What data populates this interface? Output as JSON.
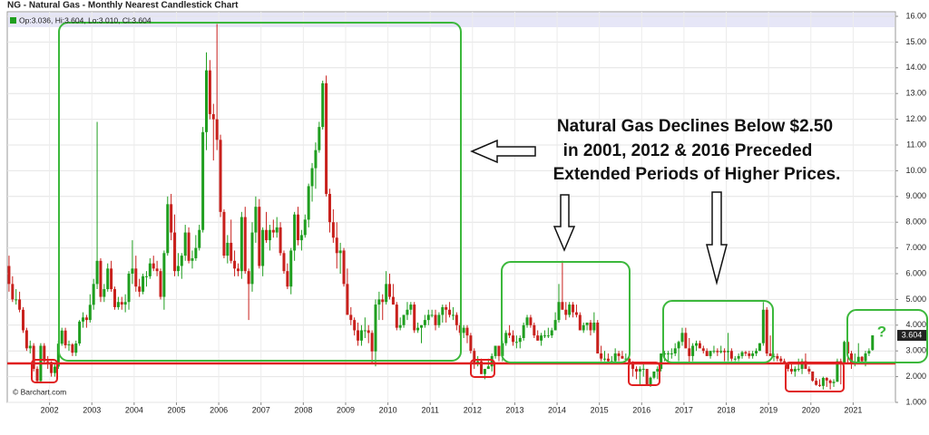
{
  "chart_data": {
    "type": "candlestick",
    "title": "NG - Natural Gas - Monthly Nearest Candlestick Chart",
    "legend": "Op:3.036, Hi:3.604, Lo:3.010, Cl:3.604",
    "source": "© Barchart.com",
    "annotations": [
      "Natural Gas Declines Below $2.50",
      "in 2001, 2012 & 2016 Preceded",
      "Extended Periods of Higher Prices.",
      "?"
    ],
    "up_color": "#1f9e1f",
    "down_color": "#c8201c",
    "ylim": [
      1,
      16
    ],
    "yticks": [
      {
        "value": 16,
        "label": "16.00"
      },
      {
        "value": 15,
        "label": "15.00"
      },
      {
        "value": 14,
        "label": "14.00"
      },
      {
        "value": 13,
        "label": "13.00"
      },
      {
        "value": 12,
        "label": "12.00"
      },
      {
        "value": 11,
        "label": "11.00"
      },
      {
        "value": 10,
        "label": "10.00"
      },
      {
        "value": 9,
        "label": "9.000"
      },
      {
        "value": 8,
        "label": "8.000"
      },
      {
        "value": 7,
        "label": "7.000"
      },
      {
        "value": 6,
        "label": "6.000"
      },
      {
        "value": 5,
        "label": "5.000"
      },
      {
        "value": 4,
        "label": "4.000"
      },
      {
        "value": 3,
        "label": "3.000"
      },
      {
        "value": 2,
        "label": "2.000"
      },
      {
        "value": 1,
        "label": "1.000"
      }
    ],
    "grid": true,
    "categories": [
      null,
      null,
      null,
      null,
      null,
      null,
      null,
      null,
      null,
      null,
      null,
      null,
      "2002",
      null,
      null,
      null,
      null,
      null,
      null,
      null,
      null,
      null,
      null,
      null,
      "2003",
      null,
      null,
      null,
      null,
      null,
      null,
      null,
      null,
      null,
      null,
      null,
      "2004",
      null,
      null,
      null,
      null,
      null,
      null,
      null,
      null,
      null,
      null,
      null,
      "2005",
      null,
      null,
      null,
      null,
      null,
      null,
      null,
      null,
      null,
      null,
      null,
      "2006",
      null,
      null,
      null,
      null,
      null,
      null,
      null,
      null,
      null,
      null,
      null,
      "2007",
      null,
      null,
      null,
      null,
      null,
      null,
      null,
      null,
      null,
      null,
      null,
      "2008",
      null,
      null,
      null,
      null,
      null,
      null,
      null,
      null,
      null,
      null,
      null,
      "2009",
      null,
      null,
      null,
      null,
      null,
      null,
      null,
      null,
      null,
      null,
      null,
      "2010",
      null,
      null,
      null,
      null,
      null,
      null,
      null,
      null,
      null,
      null,
      null,
      "2011",
      null,
      null,
      null,
      null,
      null,
      null,
      null,
      null,
      null,
      null,
      null,
      "2012",
      null,
      null,
      null,
      null,
      null,
      null,
      null,
      null,
      null,
      null,
      null,
      "2013",
      null,
      null,
      null,
      null,
      null,
      null,
      null,
      null,
      null,
      null,
      null,
      "2014",
      null,
      null,
      null,
      null,
      null,
      null,
      null,
      null,
      null,
      null,
      null,
      "2015",
      null,
      null,
      null,
      null,
      null,
      null,
      null,
      null,
      null,
      null,
      null,
      "2016",
      null,
      null,
      null,
      null,
      null,
      null,
      null,
      null,
      null,
      null,
      null,
      "2017",
      null,
      null,
      null,
      null,
      null,
      null,
      null,
      null,
      null,
      null,
      null,
      "2018",
      null,
      null,
      null,
      null,
      null,
      null,
      null,
      null,
      null,
      null,
      null,
      "2019",
      null,
      null,
      null,
      null,
      null,
      null,
      null,
      null,
      null,
      null,
      null,
      "2020",
      null,
      null,
      null,
      null,
      null,
      null,
      null,
      null,
      null,
      null,
      null,
      "2021",
      null,
      null,
      null,
      null,
      null
    ],
    "open": [
      6.3,
      5.6,
      5.0,
      5.0,
      4.6,
      3.8,
      3.1,
      3.2,
      2.3,
      1.83,
      3.2,
      2.6,
      2.57,
      2.14,
      2.39,
      3.28,
      3.79,
      3.22,
      3.25,
      2.93,
      3.29,
      4.14,
      4.3,
      4.2,
      4.79,
      5.6,
      6.5,
      5.1,
      5.4,
      6.2,
      5.4,
      4.7,
      4.9,
      4.8,
      4.9,
      6.0,
      6.2,
      5.5,
      5.3,
      5.9,
      5.9,
      6.4,
      6.2,
      6.1,
      5.1,
      6.8,
      8.7,
      7.6,
      6.1,
      6.3,
      6.7,
      7.6,
      6.5,
      6.6,
      7.0,
      7.7,
      11.5,
      13.9,
      12.2,
      12.0,
      11.2,
      8.4,
      6.7,
      7.2,
      6.5,
      6.2,
      6.1,
      8.2,
      6.1,
      5.6,
      7.6,
      8.6,
      6.3,
      7.7,
      7.3,
      7.7,
      7.6,
      7.8,
      6.8,
      6.1,
      5.5,
      6.9,
      8.3,
      7.3,
      7.5,
      8.1,
      9.4,
      10.1,
      10.8,
      11.7,
      13.4,
      9.1,
      8.0,
      7.4,
      6.8,
      6.9,
      5.6,
      4.4,
      4.2,
      3.8,
      3.4,
      3.8,
      3.8,
      3.7,
      2.98,
      4.8,
      5.0,
      4.9,
      5.6,
      5.1,
      4.8,
      3.9,
      4.0,
      4.4,
      4.6,
      4.8,
      3.8,
      3.9,
      4.0,
      4.2,
      4.4,
      4.4,
      4.0,
      4.4,
      4.7,
      4.6,
      4.4,
      4.4,
      4.0,
      3.7,
      3.9,
      3.6,
      3.0,
      2.5,
      2.6,
      2.1,
      2.3,
      2.4,
      2.8,
      3.2,
      2.8,
      3.3,
      3.7,
      3.6,
      3.35,
      3.35,
      3.5,
      4.0,
      4.3,
      4.0,
      3.6,
      3.4,
      3.6,
      3.6,
      3.6,
      3.8,
      4.2,
      4.9,
      4.6,
      4.4,
      4.8,
      4.5,
      4.4,
      3.8,
      4.0,
      4.1,
      3.8,
      4.1,
      2.9,
      2.7,
      2.7,
      2.6,
      2.6,
      2.9,
      2.8,
      2.7,
      2.7,
      2.5,
      2.3,
      2.2,
      2.3,
      2.3,
      1.7,
      1.96,
      2.2,
      2.3,
      2.9,
      2.9,
      2.9,
      2.9,
      3.1,
      3.35,
      3.7,
      3.1,
      2.8,
      3.2,
      3.3,
      3.1,
      3.0,
      2.8,
      3.0,
      3.0,
      2.95,
      3.0,
      2.95,
      3.0,
      2.7,
      2.7,
      2.8,
      2.95,
      2.9,
      2.8,
      2.9,
      3.0,
      3.3,
      4.6,
      2.9,
      2.8,
      2.8,
      2.7,
      2.6,
      2.5,
      2.3,
      2.2,
      2.3,
      2.3,
      2.6,
      2.3,
      2.2,
      1.84,
      1.68,
      1.64,
      1.95,
      1.85,
      1.75,
      1.8,
      2.6,
      2.5,
      3.35,
      2.9,
      2.5,
      2.56,
      2.77,
      2.6,
      2.9,
      3.036
    ],
    "high": [
      6.7,
      5.9,
      5.4,
      5.3,
      4.7,
      3.9,
      3.4,
      3.3,
      2.4,
      3.3,
      3.3,
      2.8,
      2.6,
      2.5,
      3.4,
      3.9,
      3.9,
      3.4,
      3.3,
      3.4,
      4.2,
      4.5,
      4.4,
      5.2,
      5.8,
      11.9,
      6.6,
      5.6,
      6.4,
      6.5,
      5.5,
      5.1,
      5.1,
      5.2,
      6.1,
      7.3,
      6.7,
      5.8,
      6.0,
      6.1,
      6.6,
      6.7,
      6.5,
      6.2,
      6.9,
      9.0,
      9.1,
      8.3,
      6.8,
      6.8,
      7.9,
      7.8,
      6.9,
      7.5,
      7.9,
      11.7,
      14.6,
      14.3,
      12.6,
      15.7,
      11.4,
      8.5,
      7.5,
      8.1,
      6.9,
      6.4,
      8.4,
      8.6,
      6.2,
      8.0,
      9.0,
      8.9,
      7.8,
      8.4,
      7.9,
      8.1,
      8.2,
      8.0,
      6.9,
      6.4,
      7.0,
      8.4,
      8.6,
      7.7,
      8.3,
      9.5,
      10.3,
      11.1,
      11.9,
      13.5,
      13.7,
      9.3,
      8.5,
      8.0,
      7.2,
      7.0,
      6.2,
      4.7,
      4.3,
      4.1,
      4.0,
      4.3,
      4.0,
      3.8,
      5.0,
      5.3,
      5.2,
      6.1,
      6.0,
      5.6,
      4.9,
      4.3,
      4.4,
      4.9,
      4.9,
      4.9,
      4.1,
      4.0,
      4.4,
      4.6,
      4.6,
      4.6,
      4.5,
      4.8,
      4.8,
      4.9,
      4.7,
      4.5,
      4.1,
      4.0,
      4.0,
      3.7,
      3.1,
      2.8,
      2.7,
      2.3,
      2.7,
      2.9,
      3.2,
      3.2,
      3.4,
      3.8,
      4.0,
      3.8,
      3.6,
      3.6,
      4.1,
      4.4,
      4.4,
      4.1,
      3.8,
      3.7,
      3.8,
      3.9,
      3.9,
      4.5,
      5.6,
      6.5,
      4.9,
      4.9,
      4.9,
      4.8,
      4.5,
      4.1,
      4.1,
      4.2,
      4.5,
      4.2,
      3.2,
      3.0,
      2.9,
      2.8,
      3.1,
      3.0,
      3.0,
      2.9,
      2.8,
      2.6,
      2.4,
      2.4,
      2.5,
      2.3,
      2.0,
      2.2,
      2.4,
      2.9,
      3.0,
      3.0,
      3.1,
      3.3,
      3.4,
      3.9,
      3.9,
      3.5,
      3.3,
      3.4,
      3.4,
      3.2,
      3.1,
      3.0,
      3.2,
      3.1,
      3.2,
      3.1,
      3.7,
      3.1,
      2.8,
      2.9,
      3.0,
      3.0,
      3.0,
      3.0,
      3.1,
      3.3,
      4.9,
      4.7,
      3.6,
      2.9,
      2.9,
      2.8,
      2.7,
      2.5,
      2.5,
      2.4,
      2.7,
      2.7,
      2.9,
      2.4,
      2.2,
      1.95,
      1.9,
      2.0,
      1.98,
      1.9,
      1.9,
      2.7,
      2.7,
      3.4,
      3.4,
      3.0,
      2.9,
      3.3,
      2.8,
      3.0,
      3.1,
      3.604
    ],
    "low": [
      5.3,
      4.9,
      4.8,
      4.5,
      3.7,
      3.0,
      2.9,
      2.2,
      1.8,
      1.8,
      2.5,
      2.3,
      2.0,
      2.0,
      2.3,
      3.2,
      3.1,
      3.0,
      2.8,
      2.8,
      3.2,
      3.9,
      3.9,
      4.1,
      4.6,
      5.4,
      4.9,
      4.9,
      5.3,
      5.3,
      4.6,
      4.6,
      4.6,
      4.5,
      4.6,
      5.6,
      5.3,
      5.1,
      5.2,
      5.5,
      5.8,
      6.1,
      5.9,
      5.0,
      4.6,
      6.7,
      7.3,
      5.9,
      5.9,
      5.8,
      6.5,
      6.4,
      6.2,
      6.5,
      6.9,
      7.6,
      10.8,
      12.0,
      10.4,
      10.8,
      8.2,
      6.6,
      6.4,
      6.4,
      5.9,
      5.9,
      5.8,
      6.0,
      4.2,
      5.3,
      7.2,
      6.2,
      5.9,
      7.2,
      6.9,
      7.4,
      7.4,
      6.7,
      6.0,
      5.4,
      5.2,
      6.5,
      7.1,
      6.9,
      7.4,
      7.8,
      8.8,
      9.3,
      10.7,
      11.6,
      9.0,
      7.6,
      7.2,
      6.2,
      6.0,
      5.5,
      4.4,
      4.0,
      3.6,
      3.2,
      3.2,
      3.5,
      3.3,
      2.5,
      2.4,
      4.2,
      4.2,
      4.8,
      5.0,
      4.8,
      3.8,
      3.8,
      3.9,
      4.2,
      4.4,
      3.7,
      3.7,
      3.3,
      3.9,
      4.0,
      4.3,
      3.8,
      3.9,
      4.1,
      4.1,
      4.3,
      4.2,
      3.8,
      3.6,
      3.5,
      3.3,
      2.9,
      2.3,
      2.4,
      2.1,
      1.9,
      2.3,
      2.2,
      2.7,
      2.6,
      2.6,
      3.2,
      3.5,
      3.2,
      3.1,
      3.1,
      3.4,
      3.9,
      3.9,
      3.5,
      3.4,
      3.2,
      3.5,
      3.5,
      3.5,
      3.8,
      4.1,
      4.6,
      4.2,
      4.3,
      4.3,
      4.3,
      3.8,
      3.7,
      3.8,
      3.6,
      3.7,
      2.9,
      2.6,
      2.6,
      2.5,
      2.5,
      2.5,
      2.6,
      2.7,
      2.6,
      2.5,
      2.0,
      1.9,
      1.7,
      2.0,
      1.7,
      1.6,
      1.9,
      1.9,
      2.2,
      2.6,
      2.6,
      2.7,
      2.8,
      2.6,
      3.2,
      3.1,
      2.5,
      2.6,
      3.0,
      3.1,
      2.9,
      2.8,
      2.7,
      2.9,
      2.8,
      2.9,
      2.6,
      2.6,
      2.6,
      2.6,
      2.6,
      2.7,
      2.8,
      2.7,
      2.7,
      2.8,
      3.0,
      3.2,
      2.8,
      2.8,
      2.6,
      2.6,
      2.5,
      2.5,
      2.2,
      2.1,
      2.0,
      2.2,
      2.1,
      2.3,
      2.1,
      1.8,
      1.65,
      1.6,
      1.5,
      1.6,
      1.5,
      1.6,
      1.8,
      1.7,
      2.5,
      2.5,
      2.3,
      2.4,
      2.5,
      2.5,
      2.4,
      2.8,
      3.01
    ],
    "close": [
      5.6,
      5.0,
      5.0,
      4.6,
      3.8,
      3.1,
      3.2,
      2.3,
      1.83,
      3.2,
      2.6,
      2.57,
      2.14,
      2.39,
      3.28,
      3.79,
      3.22,
      3.25,
      2.93,
      3.29,
      4.14,
      4.3,
      4.2,
      4.79,
      5.6,
      6.5,
      5.1,
      5.4,
      6.2,
      5.4,
      4.7,
      4.9,
      4.8,
      4.9,
      6.0,
      6.2,
      5.5,
      5.3,
      5.9,
      5.9,
      6.4,
      6.2,
      6.1,
      5.1,
      6.8,
      8.7,
      7.6,
      6.1,
      6.3,
      6.7,
      7.6,
      6.5,
      6.6,
      7.0,
      7.7,
      11.5,
      13.9,
      12.2,
      12.0,
      11.2,
      8.4,
      6.7,
      7.2,
      6.5,
      6.2,
      6.1,
      8.2,
      6.1,
      5.6,
      7.6,
      8.6,
      6.3,
      7.7,
      7.3,
      7.7,
      7.6,
      7.8,
      6.8,
      6.1,
      5.5,
      6.9,
      8.3,
      7.3,
      7.5,
      8.1,
      9.4,
      10.1,
      10.8,
      11.7,
      13.4,
      9.1,
      8.0,
      7.4,
      6.8,
      6.9,
      5.6,
      4.4,
      4.2,
      3.8,
      3.4,
      3.8,
      3.8,
      3.7,
      2.98,
      4.8,
      5.0,
      4.9,
      5.6,
      5.1,
      4.8,
      3.9,
      4.0,
      4.4,
      4.6,
      4.8,
      3.8,
      3.9,
      4.0,
      4.2,
      4.4,
      4.4,
      4.0,
      4.4,
      4.7,
      4.6,
      4.4,
      4.4,
      4.0,
      3.7,
      3.9,
      3.6,
      3.0,
      2.5,
      2.6,
      2.1,
      2.3,
      2.4,
      2.8,
      3.2,
      2.8,
      3.3,
      3.7,
      3.6,
      3.35,
      3.35,
      3.5,
      4.0,
      4.3,
      4.0,
      3.6,
      3.4,
      3.6,
      3.6,
      3.6,
      3.8,
      4.2,
      4.9,
      4.6,
      4.4,
      4.8,
      4.5,
      4.4,
      3.8,
      4.0,
      4.1,
      3.8,
      4.1,
      2.9,
      2.7,
      2.7,
      2.6,
      2.6,
      2.9,
      2.8,
      2.7,
      2.7,
      2.5,
      2.3,
      2.2,
      2.3,
      2.3,
      1.7,
      1.96,
      2.2,
      2.3,
      2.9,
      2.9,
      2.9,
      2.9,
      3.1,
      3.35,
      3.7,
      3.1,
      2.8,
      3.2,
      3.3,
      3.1,
      3.0,
      2.8,
      3.0,
      3.0,
      2.95,
      3.0,
      2.95,
      3.0,
      2.7,
      2.7,
      2.8,
      2.95,
      2.9,
      2.8,
      2.9,
      3.0,
      3.3,
      4.6,
      2.9,
      2.8,
      2.8,
      2.7,
      2.6,
      2.5,
      2.3,
      2.2,
      2.3,
      2.3,
      2.6,
      2.3,
      2.2,
      1.84,
      1.68,
      1.64,
      1.95,
      1.85,
      1.75,
      1.8,
      2.6,
      2.5,
      3.35,
      2.9,
      2.5,
      2.56,
      2.77,
      2.6,
      2.9,
      3.0,
      3.604
    ]
  }
}
